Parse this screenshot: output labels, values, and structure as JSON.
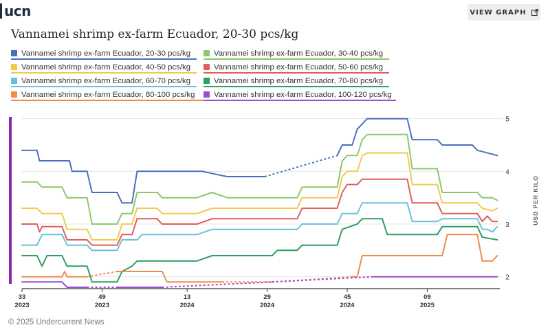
{
  "app": {
    "logo_text": "ucn"
  },
  "header": {
    "view_graph_label": "VIEW GRAPH",
    "view_graph_icon": "external-link-icon"
  },
  "title": "Vannamei shrimp ex-farm Ecuador, 20-30 pcs/kg",
  "legend": [
    {
      "label": "Vannamei shrimp ex-farm Ecuador, 20-30 pcs/kg",
      "color": "#4a6fc0"
    },
    {
      "label": "Vannamei shrimp ex-farm Ecuador, 30-40 pcs/kg",
      "color": "#8bc86a"
    },
    {
      "label": "Vannamei shrimp ex-farm Ecuador, 40-50 pcs/kg",
      "color": "#f2c94c"
    },
    {
      "label": "Vannamei shrimp ex-farm Ecuador, 50-60 pcs/kg",
      "color": "#e25c5c"
    },
    {
      "label": "Vannamei shrimp ex-farm Ecuador, 60-70 pcs/kg",
      "color": "#6cc0dc"
    },
    {
      "label": "Vannamei shrimp ex-farm Ecuador, 70-80 pcs/kg",
      "color": "#2e9e62"
    },
    {
      "label": "Vannamei shrimp ex-farm Ecuador, 80-100 pcs/kg",
      "color": "#ef8c4a"
    },
    {
      "label": "Vannamei shrimp ex-farm Ecuador, 100-120 pcs/kg",
      "color": "#9b4dca"
    }
  ],
  "chart_data": {
    "type": "line",
    "title": "Vannamei shrimp ex-farm Ecuador, 20-30 pcs/kg",
    "ylabel": "USD PER KILO",
    "xlabel": "",
    "ylim": [
      1.8,
      5.1
    ],
    "y_ticks": [
      2,
      3,
      4,
      5
    ],
    "y_axis_side": "right",
    "x_ticks": [
      {
        "week": "33",
        "year": "2023",
        "x": 0
      },
      {
        "week": "49",
        "year": "2023",
        "x": 16
      },
      {
        "week": "13",
        "year": "2024",
        "x": 33
      },
      {
        "week": "29",
        "year": "2024",
        "x": 49
      },
      {
        "week": "45",
        "year": "2024",
        "x": 65
      },
      {
        "week": "09",
        "year": "2025",
        "x": 81
      }
    ],
    "x_range": [
      0,
      95.5
    ],
    "grid": true,
    "legend_position": "top",
    "series": [
      {
        "name": "Vannamei shrimp ex-farm Ecuador, 20-30 pcs/kg",
        "color": "#4a6fc0",
        "points": [
          [
            0,
            4.4
          ],
          [
            3,
            4.4
          ],
          [
            3.5,
            4.2
          ],
          [
            7,
            4.2
          ],
          [
            9.5,
            4.2
          ],
          [
            10,
            4.0
          ],
          [
            13,
            4.0
          ],
          [
            14,
            3.6
          ],
          [
            19,
            3.6
          ],
          [
            20,
            3.4
          ],
          [
            22,
            3.4
          ],
          [
            23,
            4.0
          ],
          [
            36,
            4.0
          ],
          [
            41,
            3.9
          ],
          [
            48.5,
            3.9
          ],
          [
            63,
            4.3
          ],
          [
            63.5,
            4.4
          ],
          [
            64,
            4.5
          ],
          [
            66,
            4.5
          ],
          [
            67,
            4.8
          ],
          [
            68,
            4.9
          ],
          [
            69,
            5.0
          ],
          [
            72,
            5.0
          ],
          [
            77,
            5.0
          ],
          [
            78,
            4.6
          ],
          [
            83,
            4.6
          ],
          [
            84,
            4.5
          ],
          [
            87,
            4.5
          ],
          [
            90,
            4.5
          ],
          [
            91,
            4.4
          ],
          [
            95,
            4.3
          ]
        ],
        "dashed_ranges": [
          [
            48.5,
            63
          ]
        ]
      },
      {
        "name": "Vannamei shrimp ex-farm Ecuador, 30-40 pcs/kg",
        "color": "#8bc86a",
        "points": [
          [
            0,
            3.8
          ],
          [
            3,
            3.8
          ],
          [
            4,
            3.7
          ],
          [
            8,
            3.7
          ],
          [
            9,
            3.5
          ],
          [
            13,
            3.5
          ],
          [
            14,
            3.0
          ],
          [
            19,
            3.0
          ],
          [
            20,
            3.2
          ],
          [
            22,
            3.2
          ],
          [
            23,
            3.6
          ],
          [
            27,
            3.6
          ],
          [
            28,
            3.5
          ],
          [
            35,
            3.5
          ],
          [
            38,
            3.6
          ],
          [
            41,
            3.5
          ],
          [
            55,
            3.5
          ],
          [
            56,
            3.7
          ],
          [
            63,
            3.7
          ],
          [
            64,
            4.2
          ],
          [
            65,
            4.3
          ],
          [
            67,
            4.3
          ],
          [
            68,
            4.6
          ],
          [
            69,
            4.7
          ],
          [
            77,
            4.7
          ],
          [
            78,
            4.05
          ],
          [
            83,
            4.05
          ],
          [
            84,
            3.6
          ],
          [
            91,
            3.6
          ],
          [
            92,
            3.5
          ],
          [
            94,
            3.5
          ],
          [
            95,
            3.45
          ]
        ],
        "dashed_ranges": []
      },
      {
        "name": "Vannamei shrimp ex-farm Ecuador, 40-50 pcs/kg",
        "color": "#f2c94c",
        "points": [
          [
            0,
            3.3
          ],
          [
            3,
            3.3
          ],
          [
            4,
            3.2
          ],
          [
            8,
            3.2
          ],
          [
            9,
            2.9
          ],
          [
            13,
            2.9
          ],
          [
            14,
            2.7
          ],
          [
            19,
            2.7
          ],
          [
            20,
            3.0
          ],
          [
            22,
            3.0
          ],
          [
            23,
            3.3
          ],
          [
            27,
            3.3
          ],
          [
            28,
            3.2
          ],
          [
            35,
            3.2
          ],
          [
            38,
            3.3
          ],
          [
            55,
            3.3
          ],
          [
            56,
            3.5
          ],
          [
            63,
            3.5
          ],
          [
            64,
            3.9
          ],
          [
            65,
            4.0
          ],
          [
            67,
            4.0
          ],
          [
            68,
            4.3
          ],
          [
            69,
            4.35
          ],
          [
            77,
            4.35
          ],
          [
            78,
            3.75
          ],
          [
            83,
            3.75
          ],
          [
            84,
            3.4
          ],
          [
            91,
            3.4
          ],
          [
            92,
            3.3
          ],
          [
            94,
            3.25
          ],
          [
            95,
            3.3
          ]
        ],
        "dashed_ranges": []
      },
      {
        "name": "Vannamei shrimp ex-farm Ecuador, 50-60 pcs/kg",
        "color": "#e25c5c",
        "points": [
          [
            0,
            3.0
          ],
          [
            3,
            3.0
          ],
          [
            3.5,
            2.85
          ],
          [
            4,
            2.95
          ],
          [
            8,
            2.95
          ],
          [
            9,
            2.7
          ],
          [
            13,
            2.7
          ],
          [
            14,
            2.6
          ],
          [
            19,
            2.6
          ],
          [
            20,
            2.8
          ],
          [
            22,
            2.8
          ],
          [
            23,
            3.1
          ],
          [
            27,
            3.1
          ],
          [
            28,
            3.0
          ],
          [
            35,
            3.0
          ],
          [
            38,
            3.1
          ],
          [
            55,
            3.1
          ],
          [
            56,
            3.3
          ],
          [
            63,
            3.3
          ],
          [
            64,
            3.6
          ],
          [
            65,
            3.75
          ],
          [
            67,
            3.75
          ],
          [
            68,
            3.85
          ],
          [
            77,
            3.85
          ],
          [
            78,
            3.4
          ],
          [
            83,
            3.4
          ],
          [
            84,
            3.2
          ],
          [
            91,
            3.2
          ],
          [
            92,
            3.05
          ],
          [
            93,
            3.15
          ],
          [
            94,
            3.05
          ],
          [
            95,
            3.05
          ]
        ],
        "dashed_ranges": []
      },
      {
        "name": "Vannamei shrimp ex-farm Ecuador, 60-70 pcs/kg",
        "color": "#6cc0dc",
        "points": [
          [
            0,
            2.6
          ],
          [
            3,
            2.6
          ],
          [
            4,
            2.8
          ],
          [
            8,
            2.8
          ],
          [
            9,
            2.6
          ],
          [
            13,
            2.6
          ],
          [
            14,
            2.5
          ],
          [
            19,
            2.5
          ],
          [
            20,
            2.7
          ],
          [
            23,
            2.7
          ],
          [
            24,
            2.8
          ],
          [
            35,
            2.8
          ],
          [
            38,
            2.9
          ],
          [
            55,
            2.9
          ],
          [
            56,
            3.0
          ],
          [
            63,
            3.0
          ],
          [
            64,
            3.2
          ],
          [
            67,
            3.2
          ],
          [
            68,
            3.4
          ],
          [
            77,
            3.4
          ],
          [
            78,
            3.05
          ],
          [
            83,
            3.05
          ],
          [
            84,
            3.1
          ],
          [
            91,
            3.1
          ],
          [
            92,
            2.9
          ],
          [
            93,
            2.9
          ],
          [
            94,
            2.85
          ],
          [
            95,
            2.95
          ]
        ],
        "dashed_ranges": []
      },
      {
        "name": "Vannamei shrimp ex-farm Ecuador, 70-80 pcs/kg",
        "color": "#2e9e62",
        "points": [
          [
            0,
            2.4
          ],
          [
            3,
            2.4
          ],
          [
            4,
            2.2
          ],
          [
            5,
            2.4
          ],
          [
            8,
            2.4
          ],
          [
            9,
            2.2
          ],
          [
            13,
            2.2
          ],
          [
            14,
            1.9
          ],
          [
            19,
            1.9
          ],
          [
            20,
            2.1
          ],
          [
            22,
            2.2
          ],
          [
            23,
            2.3
          ],
          [
            35,
            2.3
          ],
          [
            38,
            2.4
          ],
          [
            50,
            2.4
          ],
          [
            51,
            2.5
          ],
          [
            55,
            2.5
          ],
          [
            56,
            2.6
          ],
          [
            63,
            2.6
          ],
          [
            64,
            2.9
          ],
          [
            67,
            3.0
          ],
          [
            68,
            3.1
          ],
          [
            72,
            3.1
          ],
          [
            73,
            2.8
          ],
          [
            83,
            2.8
          ],
          [
            84,
            2.95
          ],
          [
            91,
            2.95
          ],
          [
            92,
            2.75
          ],
          [
            95,
            2.7
          ]
        ],
        "dashed_ranges": []
      },
      {
        "name": "Vannamei shrimp ex-farm Ecuador, 80-100 pcs/kg",
        "color": "#ef8c4a",
        "points": [
          [
            0,
            2.0
          ],
          [
            8,
            2.0
          ],
          [
            8.5,
            2.1
          ],
          [
            9,
            2.0
          ],
          [
            13,
            2.0
          ],
          [
            19,
            2.1
          ],
          [
            20,
            2.1
          ],
          [
            28,
            2.1
          ],
          [
            29,
            1.9
          ],
          [
            40,
            1.9
          ],
          [
            50,
            1.9
          ],
          [
            66,
            2.0
          ],
          [
            67,
            2.0
          ],
          [
            68,
            2.4
          ],
          [
            84,
            2.4
          ],
          [
            85,
            2.8
          ],
          [
            91,
            2.8
          ],
          [
            92,
            2.3
          ],
          [
            94,
            2.3
          ],
          [
            95,
            2.4
          ]
        ],
        "dashed_ranges": [
          [
            13,
            19
          ],
          [
            40,
            66
          ]
        ]
      },
      {
        "name": "Vannamei shrimp ex-farm Ecuador, 100-120 pcs/kg",
        "color": "#9b4dca",
        "points": [
          [
            0,
            1.9
          ],
          [
            8,
            1.9
          ],
          [
            9,
            1.8
          ],
          [
            13,
            1.8
          ],
          [
            19,
            1.8
          ],
          [
            28,
            1.8
          ],
          [
            50,
            1.9
          ],
          [
            70,
            2.0
          ],
          [
            95,
            2.0
          ]
        ],
        "dashed_ranges": [
          [
            13,
            19
          ],
          [
            28,
            70
          ]
        ]
      }
    ]
  },
  "footer": {
    "copyright": "© 2025 Undercurrent News"
  }
}
